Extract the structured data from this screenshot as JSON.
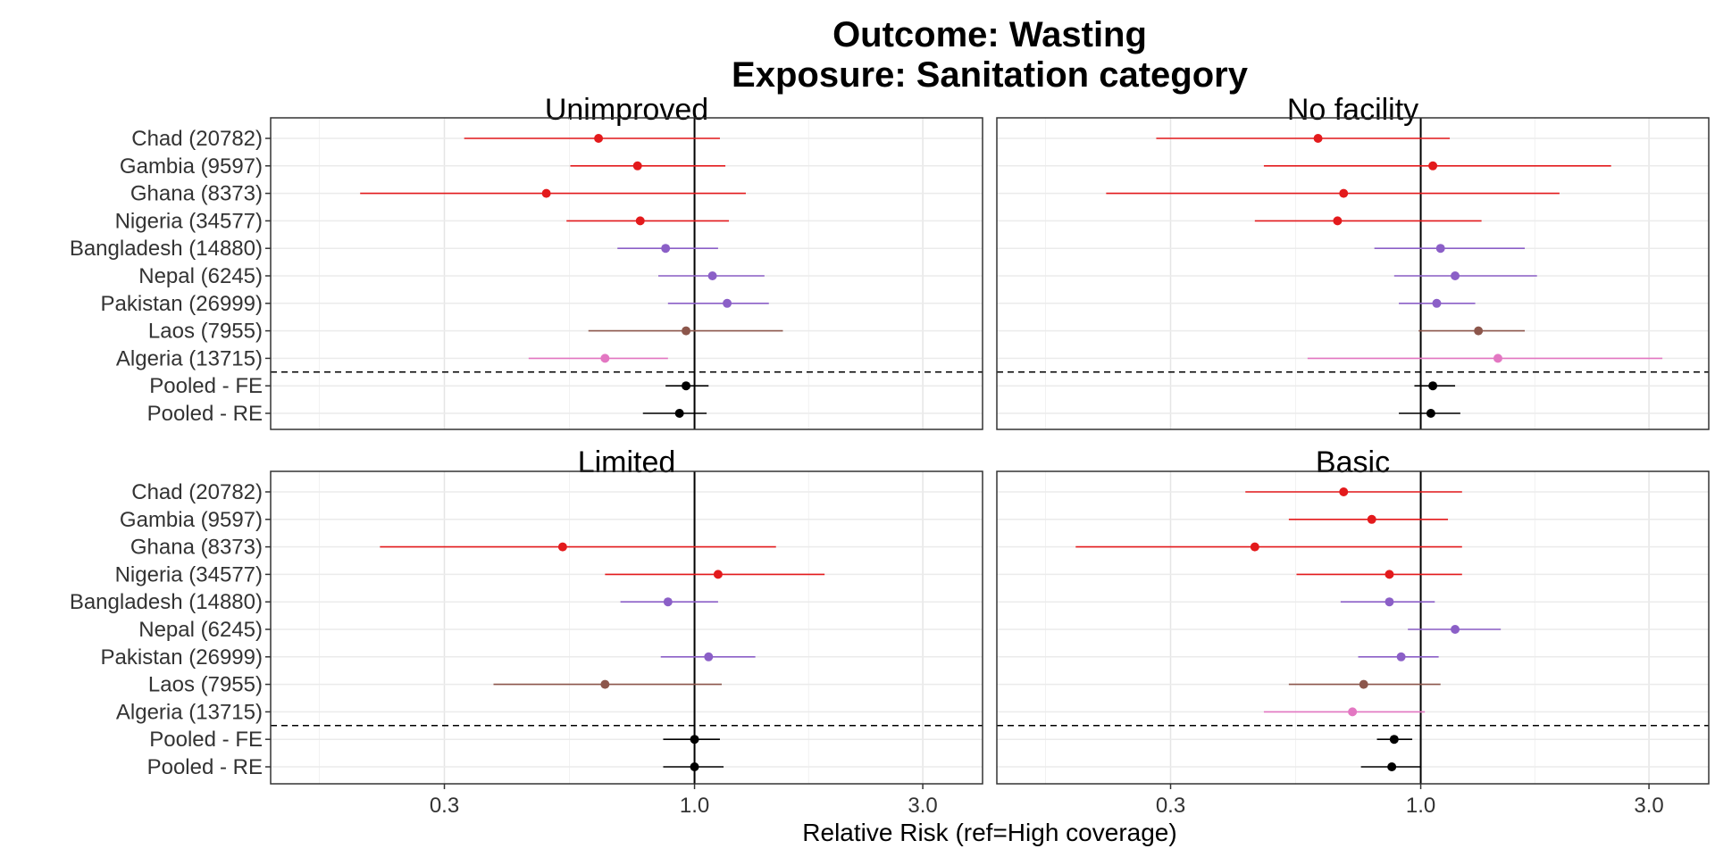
{
  "chart_data": {
    "type": "forest",
    "title": "Outcome: Wasting",
    "subtitle": "Exposure: Sanitation category",
    "xlabel": "Relative Risk (ref=High coverage)",
    "x_scale": "log",
    "xlim": [
      0.13,
      4.0
    ],
    "x_ticks": [
      0.3,
      1.0,
      3.0
    ],
    "x_tick_labels": [
      "0.3",
      "1.0",
      "3.0"
    ],
    "reference_line": 1.0,
    "rows": [
      "Chad (20782)",
      "Gambia (9597)",
      "Ghana (8373)",
      "Nigeria (34577)",
      "Bangladesh (14880)",
      "Nepal (6245)",
      "Pakistan (26999)",
      "Laos (7955)",
      "Algeria (13715)",
      "Pooled - FE",
      "Pooled - RE"
    ],
    "row_colors": [
      "#e31a1c",
      "#e31a1c",
      "#e31a1c",
      "#e31a1c",
      "#8b5fc7",
      "#8b5fc7",
      "#8b5fc7",
      "#8c564b",
      "#e377c2",
      "#000000",
      "#000000"
    ],
    "panels": [
      {
        "label": "Unimproved",
        "estimates": [
          {
            "rr": 0.63,
            "lo": 0.33,
            "hi": 1.13
          },
          {
            "rr": 0.76,
            "lo": 0.55,
            "hi": 1.16
          },
          {
            "rr": 0.49,
            "lo": 0.2,
            "hi": 1.28
          },
          {
            "rr": 0.77,
            "lo": 0.54,
            "hi": 1.18
          },
          {
            "rr": 0.87,
            "lo": 0.69,
            "hi": 1.12
          },
          {
            "rr": 1.09,
            "lo": 0.84,
            "hi": 1.4
          },
          {
            "rr": 1.17,
            "lo": 0.88,
            "hi": 1.43
          },
          {
            "rr": 0.96,
            "lo": 0.6,
            "hi": 1.53
          },
          {
            "rr": 0.65,
            "lo": 0.45,
            "hi": 0.88
          },
          {
            "rr": 0.96,
            "lo": 0.87,
            "hi": 1.07
          },
          {
            "rr": 0.93,
            "lo": 0.78,
            "hi": 1.06
          }
        ]
      },
      {
        "label": "No facility",
        "estimates": [
          {
            "rr": 0.61,
            "lo": 0.28,
            "hi": 1.15
          },
          {
            "rr": 1.06,
            "lo": 0.47,
            "hi": 2.5
          },
          {
            "rr": 0.69,
            "lo": 0.22,
            "hi": 1.95
          },
          {
            "rr": 0.67,
            "lo": 0.45,
            "hi": 1.34
          },
          {
            "rr": 1.1,
            "lo": 0.8,
            "hi": 1.65
          },
          {
            "rr": 1.18,
            "lo": 0.88,
            "hi": 1.75
          },
          {
            "rr": 1.08,
            "lo": 0.9,
            "hi": 1.3
          },
          {
            "rr": 1.32,
            "lo": 0.99,
            "hi": 1.65
          },
          {
            "rr": 1.45,
            "lo": 0.58,
            "hi": 3.2
          },
          {
            "rr": 1.06,
            "lo": 0.97,
            "hi": 1.18
          },
          {
            "rr": 1.05,
            "lo": 0.9,
            "hi": 1.21
          }
        ]
      },
      {
        "label": "Limited",
        "estimates": [
          {
            "rr": null,
            "lo": null,
            "hi": null
          },
          {
            "rr": null,
            "lo": null,
            "hi": null
          },
          {
            "rr": 0.53,
            "lo": 0.22,
            "hi": 1.48
          },
          {
            "rr": 1.12,
            "lo": 0.65,
            "hi": 1.87
          },
          {
            "rr": 0.88,
            "lo": 0.7,
            "hi": 1.12
          },
          {
            "rr": null,
            "lo": null,
            "hi": null
          },
          {
            "rr": 1.07,
            "lo": 0.85,
            "hi": 1.34
          },
          {
            "rr": 0.65,
            "lo": 0.38,
            "hi": 1.14
          },
          {
            "rr": null,
            "lo": null,
            "hi": null
          },
          {
            "rr": 1.0,
            "lo": 0.86,
            "hi": 1.13
          },
          {
            "rr": 1.0,
            "lo": 0.86,
            "hi": 1.15
          }
        ]
      },
      {
        "label": "Basic",
        "estimates": [
          {
            "rr": 0.69,
            "lo": 0.43,
            "hi": 1.22
          },
          {
            "rr": 0.79,
            "lo": 0.53,
            "hi": 1.14
          },
          {
            "rr": 0.45,
            "lo": 0.19,
            "hi": 1.22
          },
          {
            "rr": 0.86,
            "lo": 0.55,
            "hi": 1.22
          },
          {
            "rr": 0.86,
            "lo": 0.68,
            "hi": 1.07
          },
          {
            "rr": 1.18,
            "lo": 0.94,
            "hi": 1.47
          },
          {
            "rr": 0.91,
            "lo": 0.74,
            "hi": 1.09
          },
          {
            "rr": 0.76,
            "lo": 0.53,
            "hi": 1.1
          },
          {
            "rr": 0.72,
            "lo": 0.47,
            "hi": 1.02
          },
          {
            "rr": 0.88,
            "lo": 0.81,
            "hi": 0.96
          },
          {
            "rr": 0.87,
            "lo": 0.75,
            "hi": 1.0
          }
        ]
      }
    ]
  }
}
